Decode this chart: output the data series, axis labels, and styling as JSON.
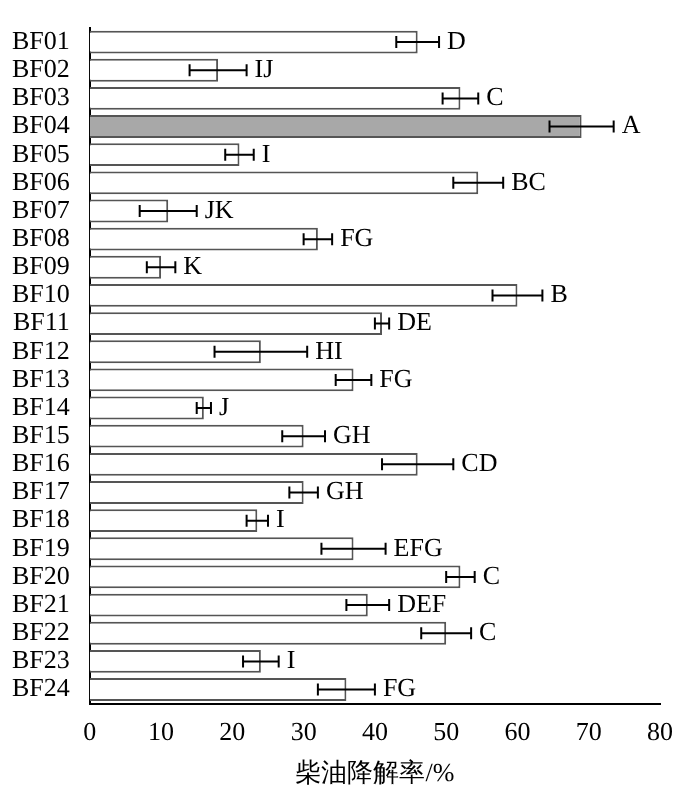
{
  "chart_data": {
    "type": "bar",
    "orientation": "horizontal",
    "xlabel": "柴油降解率/%",
    "categories": [
      "BF01",
      "BF02",
      "BF03",
      "BF04",
      "BF05",
      "BF06",
      "BF07",
      "BF08",
      "BF09",
      "BF10",
      "BF11",
      "BF12",
      "BF13",
      "BF14",
      "BF15",
      "BF16",
      "BF17",
      "BF18",
      "BF19",
      "BF20",
      "BF21",
      "BF22",
      "BF23",
      "BF24"
    ],
    "values": [
      46,
      18,
      52,
      69,
      21,
      54.5,
      11,
      32,
      10,
      60,
      41,
      24,
      37,
      16,
      30,
      46,
      30,
      23.5,
      37,
      52,
      39,
      50,
      24,
      36
    ],
    "errors": [
      3,
      4,
      2.5,
      4.5,
      2,
      3.5,
      4,
      2,
      2,
      3.5,
      1,
      6.5,
      2.5,
      1,
      3,
      5,
      2,
      1.5,
      4.5,
      2,
      3,
      3.5,
      2.5,
      4
    ],
    "colors": [
      "#ffffff",
      "#ffffff",
      "#ffffff",
      "#a8a8a8",
      "#ffffff",
      "#ffffff",
      "#ffffff",
      "#ffffff",
      "#ffffff",
      "#ffffff",
      "#ffffff",
      "#ffffff",
      "#ffffff",
      "#ffffff",
      "#ffffff",
      "#ffffff",
      "#ffffff",
      "#ffffff",
      "#ffffff",
      "#ffffff",
      "#ffffff",
      "#ffffff",
      "#ffffff",
      "#ffffff"
    ],
    "xlim": [
      0,
      80
    ],
    "xticks": [
      0,
      10,
      20,
      30,
      40,
      50,
      60,
      70,
      80
    ],
    "grid": false,
    "legend": false,
    "annotations": [
      {
        "text": "D",
        "x": 49,
        "y": "BF01"
      },
      {
        "text": "IJ",
        "x": 22,
        "y": "BF02"
      },
      {
        "text": "C",
        "x": 54.5,
        "y": "BF03"
      },
      {
        "text": "A",
        "x": 73.5,
        "y": "BF04"
      },
      {
        "text": "I",
        "x": 23,
        "y": "BF05"
      },
      {
        "text": "BC",
        "x": 58,
        "y": "BF06"
      },
      {
        "text": "JK",
        "x": 15,
        "y": "BF07"
      },
      {
        "text": "FG",
        "x": 34,
        "y": "BF08"
      },
      {
        "text": "K",
        "x": 12,
        "y": "BF09"
      },
      {
        "text": "B",
        "x": 63.5,
        "y": "BF10"
      },
      {
        "text": "DE",
        "x": 42,
        "y": "BF11"
      },
      {
        "text": "HI",
        "x": 30.5,
        "y": "BF12"
      },
      {
        "text": "FG",
        "x": 39.5,
        "y": "BF13"
      },
      {
        "text": "J",
        "x": 17,
        "y": "BF14"
      },
      {
        "text": "GH",
        "x": 33,
        "y": "BF15"
      },
      {
        "text": "CD",
        "x": 51,
        "y": "BF16"
      },
      {
        "text": "GH",
        "x": 32,
        "y": "BF17"
      },
      {
        "text": "I",
        "x": 25,
        "y": "BF18"
      },
      {
        "text": "EFG",
        "x": 41.5,
        "y": "BF19"
      },
      {
        "text": "C",
        "x": 54,
        "y": "BF20"
      },
      {
        "text": "DEF",
        "x": 42,
        "y": "BF21"
      },
      {
        "text": "C",
        "x": 53.5,
        "y": "BF22"
      },
      {
        "text": "I",
        "x": 26.5,
        "y": "BF23"
      },
      {
        "text": "FG",
        "x": 40,
        "y": "BF24"
      }
    ]
  }
}
